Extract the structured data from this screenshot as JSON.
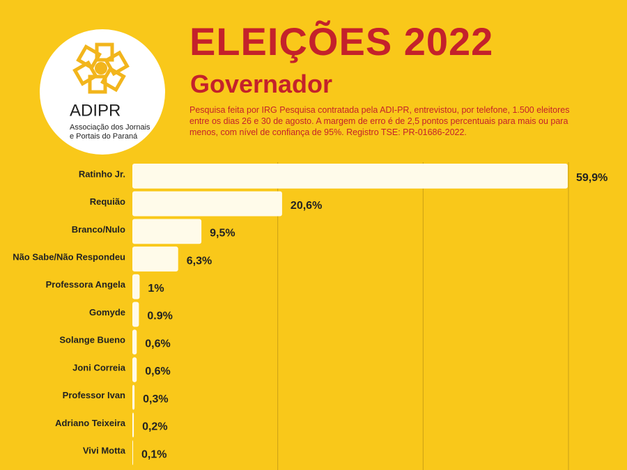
{
  "logo": {
    "name": "ADIPR",
    "lines": [
      "Associação dos Jornais",
      "e Portais do Paraná"
    ]
  },
  "chart_data": {
    "type": "bar",
    "orientation": "horizontal",
    "title": "ELEIÇÕES 2022",
    "subtitle": "Governador",
    "note": "Pesquisa feita por IRG Pesquisa contratada pela ADI-PR, entrevistou, por telefone, 1.500 eleitores entre os dias 26 e 30 de agosto. A margem de erro é de 2,5 pontos percentuais para mais ou para menos, com nível de confiança de 95%. Registro TSE: PR-01686-2022.",
    "categories": [
      "Ratinho Jr.",
      "Requião",
      "Branco/Nulo",
      "Não Sabe/Não Respondeu",
      "Professora  Angela",
      "Gomyde",
      "Solange Bueno",
      "Joni Correia",
      "Professor Ivan",
      "Adriano Teixeira",
      "Vivi Motta"
    ],
    "values": [
      59.9,
      20.6,
      9.5,
      6.3,
      1,
      0.9,
      0.6,
      0.6,
      0.3,
      0.2,
      0.1
    ],
    "value_labels": [
      "59,9%",
      "20,6%",
      "9,5%",
      "6,3%",
      "1%",
      "0.9%",
      "0,6%",
      "0,6%",
      "0,3%",
      "0,2%",
      "0,1%"
    ],
    "color": "#fffbea",
    "grid_color": "#c9a015",
    "xlim": [
      0,
      60
    ],
    "xticks": [
      20,
      40,
      60
    ],
    "grid": true
  }
}
